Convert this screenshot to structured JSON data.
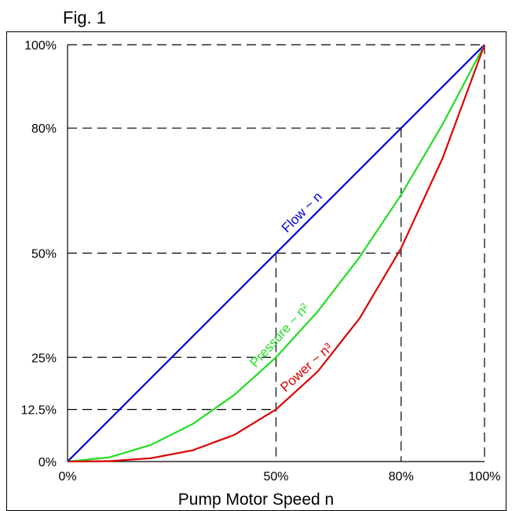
{
  "chart_data": {
    "type": "line",
    "title": "Fig. 1",
    "xlabel": "Pump Motor Speed n",
    "ylabel": "",
    "xlim": [
      0,
      100
    ],
    "ylim": [
      0,
      100
    ],
    "x_ticks": [
      0,
      50,
      80,
      100
    ],
    "x_tick_labels": [
      "0%",
      "50%",
      "80%",
      "100%"
    ],
    "y_ticks": [
      0,
      12.5,
      25,
      50,
      80,
      100
    ],
    "y_tick_labels": [
      "0%",
      "12.5%",
      "25%",
      "50%",
      "80%",
      "100%"
    ],
    "grid": false,
    "reference_lines": [
      {
        "axis": "y",
        "value": 100
      },
      {
        "axis": "y",
        "value": 80
      },
      {
        "axis": "y",
        "value": 50
      },
      {
        "axis": "y",
        "value": 25
      },
      {
        "axis": "y",
        "value": 12.5
      },
      {
        "axis": "x",
        "value": 50
      },
      {
        "axis": "x",
        "value": 80
      },
      {
        "axis": "x",
        "value": 100
      }
    ],
    "series": [
      {
        "label": "Flow ~ n",
        "color": "#0000dd",
        "x": [
          0,
          10,
          20,
          30,
          40,
          50,
          60,
          70,
          80,
          90,
          100
        ],
        "y": [
          0,
          10,
          20,
          30,
          40,
          50,
          60,
          70,
          80,
          90,
          100
        ]
      },
      {
        "label": "Pressure ~ n²",
        "color": "#22dd22",
        "x": [
          0,
          10,
          20,
          30,
          40,
          50,
          60,
          70,
          80,
          90,
          100
        ],
        "y": [
          0,
          1,
          4,
          9,
          16,
          25,
          36,
          49,
          64,
          81,
          100
        ]
      },
      {
        "label": "Power ~ n³",
        "color": "#dd0000",
        "x": [
          0,
          10,
          20,
          30,
          40,
          50,
          60,
          70,
          80,
          90,
          100
        ],
        "y": [
          0,
          0.1,
          0.8,
          2.7,
          6.4,
          12.5,
          21.6,
          34.3,
          51.2,
          72.9,
          100
        ]
      }
    ]
  }
}
